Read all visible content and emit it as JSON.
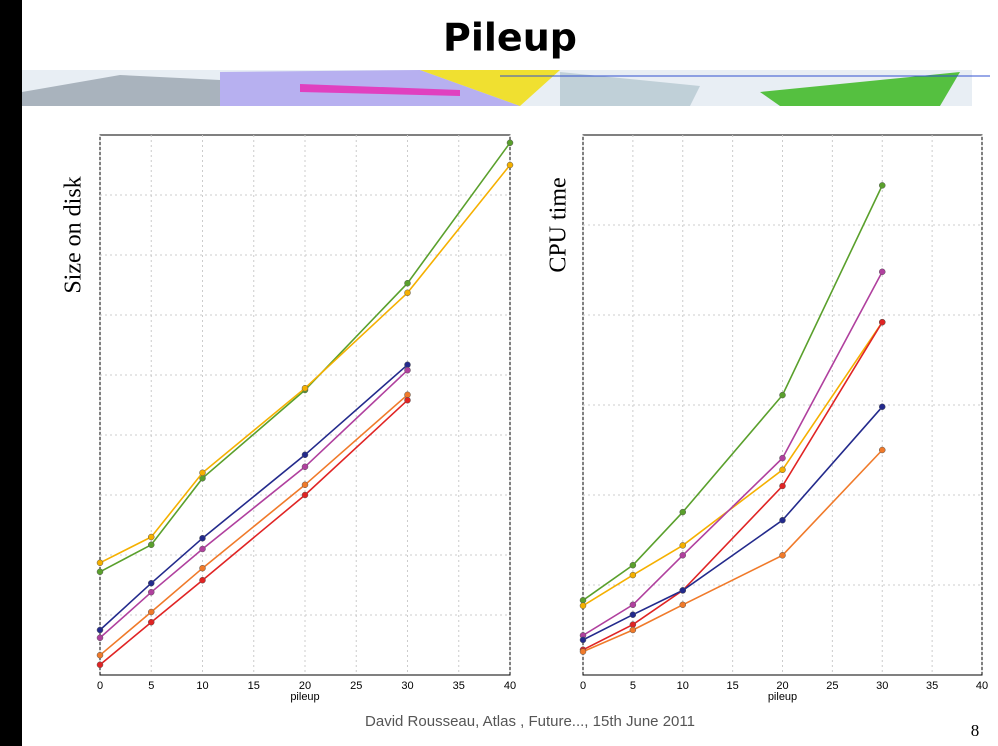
{
  "title": "Pileup",
  "footer": "David Rousseau, Atlas , Future..., 15th June 2011",
  "page_number": "8",
  "chart_data": [
    {
      "type": "line",
      "ylabel": "Size on disk",
      "xlabel": "pileup",
      "x": [
        0,
        5,
        10,
        20,
        30,
        40
      ],
      "xlim": [
        0,
        40
      ],
      "xticks": [
        0,
        5,
        10,
        15,
        20,
        25,
        30,
        35,
        40
      ],
      "ylim": [
        0,
        9
      ],
      "yticks": [
        1,
        2,
        3,
        4,
        5,
        6,
        7,
        8
      ],
      "grid": true,
      "series": [
        {
          "color": "#5aa02c",
          "values": [
            1.72,
            2.17,
            3.28,
            4.75,
            6.53,
            8.87
          ]
        },
        {
          "color": "#f5b000",
          "values": [
            1.87,
            2.3,
            3.37,
            4.78,
            6.37,
            8.5
          ]
        },
        {
          "color": "#232a8c",
          "values": [
            0.75,
            1.53,
            2.28,
            3.67,
            5.17,
            null
          ]
        },
        {
          "color": "#b0409e",
          "values": [
            0.62,
            1.38,
            2.1,
            3.47,
            5.08,
            null
          ]
        },
        {
          "color": "#f07a2a",
          "values": [
            0.33,
            1.05,
            1.78,
            3.17,
            4.67,
            null
          ]
        },
        {
          "color": "#e02424",
          "values": [
            0.17,
            0.88,
            1.58,
            3.0,
            4.58,
            null
          ]
        }
      ]
    },
    {
      "type": "line",
      "ylabel": "CPU time",
      "xlabel": "pileup",
      "x": [
        0,
        5,
        10,
        20,
        30
      ],
      "xlim": [
        0,
        40
      ],
      "xticks": [
        0,
        5,
        10,
        15,
        20,
        25,
        30,
        35,
        40
      ],
      "ylim": [
        0,
        6
      ],
      "yticks": [
        1,
        2,
        3,
        4,
        5
      ],
      "grid": true,
      "series": [
        {
          "color": "#5aa02c",
          "values": [
            0.83,
            1.22,
            1.81,
            3.11,
            5.44
          ]
        },
        {
          "color": "#f5b000",
          "values": [
            0.77,
            1.11,
            1.44,
            2.28,
            3.92
          ]
        },
        {
          "color": "#b0409e",
          "values": [
            0.44,
            0.78,
            1.33,
            2.41,
            4.48
          ]
        },
        {
          "color": "#e02424",
          "values": [
            0.28,
            0.56,
            0.94,
            2.1,
            3.92
          ]
        },
        {
          "color": "#232a8c",
          "values": [
            0.39,
            0.67,
            0.94,
            1.72,
            2.98
          ]
        },
        {
          "color": "#f07a2a",
          "values": [
            0.26,
            0.5,
            0.78,
            1.33,
            2.5
          ]
        }
      ]
    }
  ]
}
